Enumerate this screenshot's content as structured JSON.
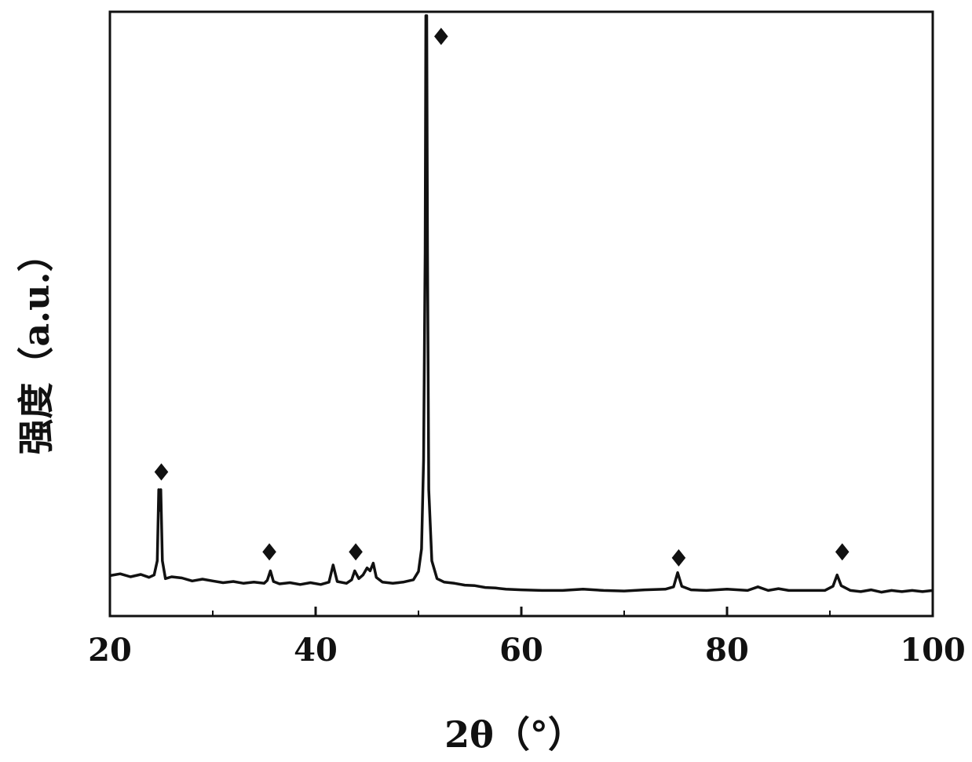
{
  "chart_data": {
    "type": "line",
    "title": "",
    "xlabel": "2θ（°）",
    "ylabel": "强度（a.u.）",
    "xlim": [
      20,
      100
    ],
    "ylim": [
      0,
      100
    ],
    "x_ticks": [
      20,
      40,
      60,
      80,
      100
    ],
    "x_minor_ticks": [
      30,
      50,
      70,
      90
    ],
    "y_ticks": [],
    "grid": false,
    "legend": "none",
    "line_color": "#111111",
    "series": [
      {
        "values": [
          [
            20.0,
            5.5
          ],
          [
            21.0,
            5.8
          ],
          [
            22.0,
            5.3
          ],
          [
            23.0,
            5.7
          ],
          [
            23.8,
            5.2
          ],
          [
            24.3,
            5.6
          ],
          [
            24.6,
            8.0
          ],
          [
            24.75,
            20.0
          ],
          [
            24.85,
            16.5
          ],
          [
            24.95,
            20.0
          ],
          [
            25.1,
            8.0
          ],
          [
            25.4,
            5.0
          ],
          [
            26.0,
            5.3
          ],
          [
            27.0,
            5.1
          ],
          [
            28.0,
            4.6
          ],
          [
            29.0,
            4.9
          ],
          [
            30.0,
            4.6
          ],
          [
            31.0,
            4.3
          ],
          [
            32.0,
            4.5
          ],
          [
            33.0,
            4.2
          ],
          [
            34.0,
            4.4
          ],
          [
            35.0,
            4.2
          ],
          [
            35.3,
            4.7
          ],
          [
            35.6,
            6.3
          ],
          [
            35.9,
            4.5
          ],
          [
            36.5,
            4.1
          ],
          [
            37.5,
            4.3
          ],
          [
            38.5,
            4.0
          ],
          [
            39.5,
            4.3
          ],
          [
            40.5,
            4.0
          ],
          [
            41.3,
            4.4
          ],
          [
            41.7,
            7.3
          ],
          [
            42.1,
            4.5
          ],
          [
            43.0,
            4.2
          ],
          [
            43.5,
            4.8
          ],
          [
            43.8,
            6.3
          ],
          [
            44.2,
            5.0
          ],
          [
            44.6,
            5.6
          ],
          [
            45.0,
            6.8
          ],
          [
            45.3,
            6.3
          ],
          [
            45.6,
            7.6
          ],
          [
            45.9,
            5.2
          ],
          [
            46.5,
            4.4
          ],
          [
            47.5,
            4.2
          ],
          [
            48.5,
            4.4
          ],
          [
            49.5,
            4.8
          ],
          [
            50.0,
            6.2
          ],
          [
            50.3,
            10.0
          ],
          [
            50.5,
            25.0
          ],
          [
            50.65,
            60.0
          ],
          [
            50.72,
            100.0
          ],
          [
            50.8,
            100.0
          ],
          [
            50.88,
            60.0
          ],
          [
            51.0,
            20.0
          ],
          [
            51.3,
            8.0
          ],
          [
            51.8,
            5.0
          ],
          [
            52.5,
            4.4
          ],
          [
            53.5,
            4.2
          ],
          [
            54.5,
            3.9
          ],
          [
            55.5,
            3.8
          ],
          [
            56.5,
            3.5
          ],
          [
            57.5,
            3.4
          ],
          [
            58.5,
            3.2
          ],
          [
            60.0,
            3.1
          ],
          [
            62.0,
            3.0
          ],
          [
            64.0,
            3.0
          ],
          [
            66.0,
            3.2
          ],
          [
            68.0,
            3.0
          ],
          [
            70.0,
            2.9
          ],
          [
            72.0,
            3.1
          ],
          [
            74.0,
            3.2
          ],
          [
            74.8,
            3.6
          ],
          [
            75.2,
            6.0
          ],
          [
            75.6,
            3.7
          ],
          [
            76.5,
            3.1
          ],
          [
            78.0,
            3.0
          ],
          [
            80.0,
            3.2
          ],
          [
            82.0,
            3.0
          ],
          [
            83.0,
            3.6
          ],
          [
            84.0,
            3.0
          ],
          [
            85.0,
            3.3
          ],
          [
            86.0,
            3.0
          ],
          [
            88.0,
            3.0
          ],
          [
            89.5,
            3.0
          ],
          [
            90.3,
            3.7
          ],
          [
            90.7,
            5.6
          ],
          [
            91.1,
            3.8
          ],
          [
            92.0,
            3.0
          ],
          [
            93.0,
            2.8
          ],
          [
            94.0,
            3.1
          ],
          [
            95.0,
            2.7
          ],
          [
            96.0,
            3.0
          ],
          [
            97.0,
            2.8
          ],
          [
            98.0,
            3.0
          ],
          [
            99.0,
            2.8
          ],
          [
            100.0,
            3.0
          ]
        ]
      }
    ],
    "annotations": [
      {
        "label": "◆",
        "x": 25.0,
        "y": 23.0
      },
      {
        "label": "◆",
        "x": 35.5,
        "y": 9.5
      },
      {
        "label": "◆",
        "x": 43.9,
        "y": 9.5
      },
      {
        "label": "◆",
        "x": 52.2,
        "y": 96.5
      },
      {
        "label": "◆",
        "x": 75.3,
        "y": 8.5
      },
      {
        "label": "◆",
        "x": 91.2,
        "y": 9.5
      }
    ]
  }
}
